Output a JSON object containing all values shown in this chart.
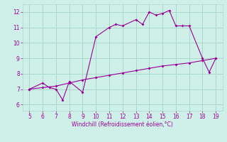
{
  "xlabel": "Windchill (Refroidissement éolien,°C)",
  "bg_color": "#cff0e8",
  "line_color": "#990099",
  "grid_color": "#aad8cc",
  "xlim": [
    4.5,
    19.5
  ],
  "ylim": [
    5.6,
    12.5
  ],
  "xticks": [
    5,
    6,
    7,
    8,
    9,
    10,
    11,
    12,
    13,
    14,
    15,
    16,
    17,
    18,
    19
  ],
  "yticks": [
    6,
    7,
    8,
    9,
    10,
    11,
    12
  ],
  "jagged_x": [
    5,
    6,
    6.5,
    7,
    7.5,
    8,
    9,
    10,
    11,
    11.5,
    12,
    13,
    13.5,
    14,
    14.5,
    15,
    15.5,
    16,
    16.5,
    17,
    18,
    18.5,
    19
  ],
  "jagged_y": [
    7.0,
    7.4,
    7.1,
    7.0,
    6.3,
    7.5,
    6.8,
    10.4,
    11.0,
    11.2,
    11.1,
    11.5,
    11.2,
    12.0,
    11.8,
    11.9,
    12.1,
    11.1,
    11.1,
    11.1,
    9.0,
    8.1,
    9.0
  ],
  "smooth_x": [
    5,
    6,
    7,
    8,
    9,
    10,
    11,
    12,
    13,
    14,
    15,
    16,
    17,
    18,
    19
  ],
  "smooth_y": [
    7.0,
    7.1,
    7.2,
    7.4,
    7.6,
    7.75,
    7.9,
    8.05,
    8.2,
    8.35,
    8.5,
    8.6,
    8.7,
    8.85,
    9.0
  ]
}
